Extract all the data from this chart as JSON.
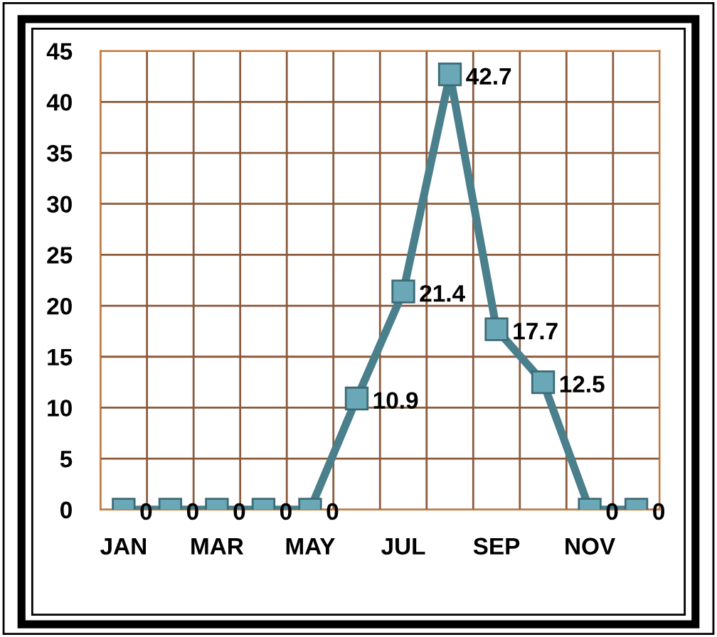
{
  "chart_data": {
    "type": "line",
    "categories": [
      "JAN",
      null,
      "MAR",
      null,
      "MAY",
      null,
      "JUL",
      null,
      "SEP",
      null,
      "NOV",
      null
    ],
    "series": [
      {
        "color": "#4a7f8c",
        "values": [
          0,
          0,
          0,
          0,
          0,
          10.9,
          21.4,
          42.7,
          17.7,
          12.5,
          0,
          0
        ]
      }
    ],
    "ylim": [
      0,
      45
    ],
    "yticks": [
      0,
      5,
      10,
      15,
      20,
      25,
      30,
      35,
      40,
      45
    ],
    "grid": true,
    "marker": "square",
    "line_style": "solid",
    "data_labels": true
  }
}
